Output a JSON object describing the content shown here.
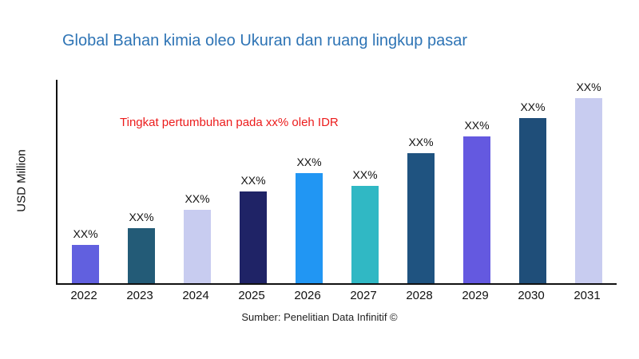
{
  "chart_data": {
    "type": "bar",
    "title": "Global Bahan kimia oleo Ukuran dan ruang lingkup pasar",
    "annotation": "Tingkat pertumbuhan pada xx% oleh IDR",
    "ylabel": "USD Million",
    "xlabel": "",
    "source": "Sumber: Penelitian Data Infinitif ©",
    "categories": [
      "2022",
      "2023",
      "2024",
      "2025",
      "2026",
      "2027",
      "2028",
      "2029",
      "2030",
      "2031"
    ],
    "values": [
      19,
      27,
      36,
      45,
      54,
      48,
      64,
      72,
      81,
      91
    ],
    "bar_labels": [
      "XX%",
      "XX%",
      "XX%",
      "XX%",
      "XX%",
      "XX%",
      "XX%",
      "XX%",
      "XX%",
      "XX%"
    ],
    "colors": [
      "#6160DF",
      "#235B77",
      "#C8CCF0",
      "#1F2366",
      "#2196F3",
      "#30B8C4",
      "#1F5380",
      "#6459E0",
      "#1F4E79",
      "#C8CCF0"
    ],
    "ylim": [
      0,
      100
    ],
    "grid": false,
    "legend": "none",
    "title_color": "#2E74B5",
    "annotation_color": "#EC1C1C",
    "axis_color": "#111111"
  }
}
